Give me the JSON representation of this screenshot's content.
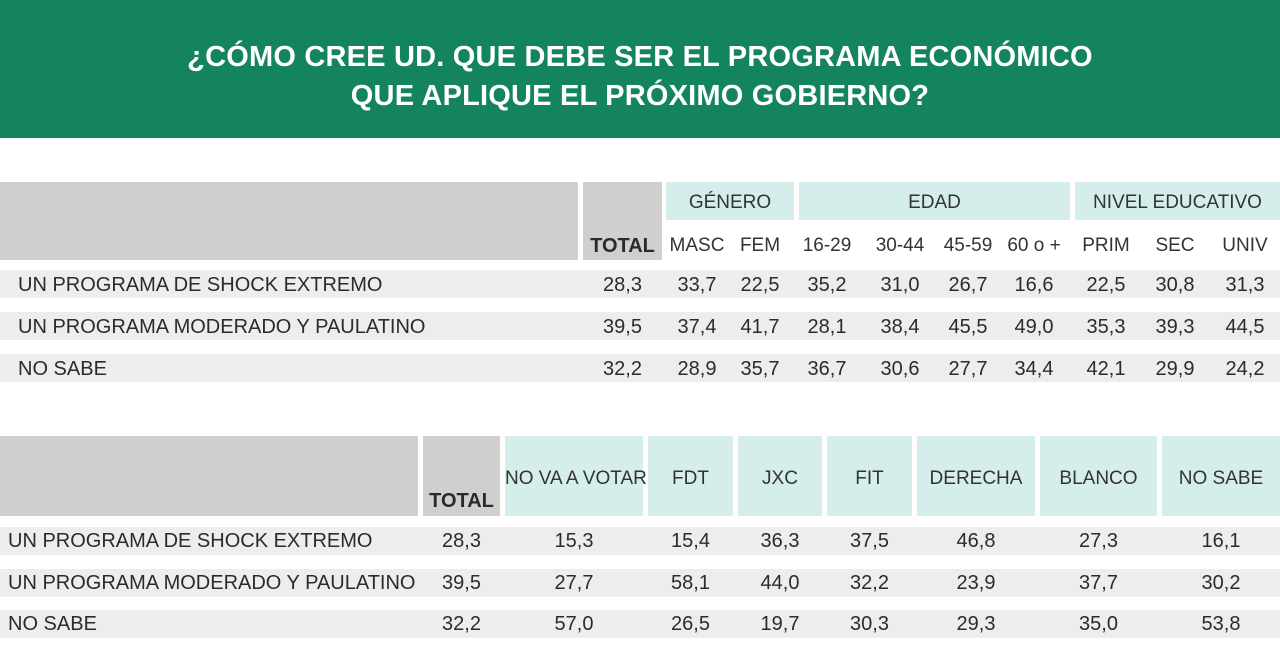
{
  "title": {
    "line1": "¿CÓMO CREE UD. QUE DEBE SER EL PROGRAMA ECONÓMICO",
    "line2": "QUE APLIQUE EL PRÓXIMO GOBIERNO?"
  },
  "colors": {
    "banner": "#13845f",
    "header_gray": "#cfcfcf",
    "header_teal": "#d5eeeb",
    "row_band": "#ededed"
  },
  "chart_data": [
    {
      "type": "table",
      "group_headers": [
        "GÉNERO",
        "EDAD",
        "NIVEL EDUCATIVO"
      ],
      "total_label": "TOTAL",
      "columns": [
        "MASC",
        "FEM",
        "16-29",
        "30-44",
        "45-59",
        "60 o +",
        "PRIM",
        "SEC",
        "UNIV"
      ],
      "rows": [
        {
          "label": "UN PROGRAMA DE SHOCK EXTREMO",
          "total": "28,3",
          "values": [
            "33,7",
            "22,5",
            "35,2",
            "31,0",
            "26,7",
            "16,6",
            "22,5",
            "30,8",
            "31,3"
          ]
        },
        {
          "label": "UN PROGRAMA MODERADO Y PAULATINO",
          "total": "39,5",
          "values": [
            "37,4",
            "41,7",
            "28,1",
            "38,4",
            "45,5",
            "49,0",
            "35,3",
            "39,3",
            "44,5"
          ]
        },
        {
          "label": "NO SABE",
          "total": "32,2",
          "values": [
            "28,9",
            "35,7",
            "36,7",
            "30,6",
            "27,7",
            "34,4",
            "42,1",
            "29,9",
            "24,2"
          ]
        }
      ]
    },
    {
      "type": "table",
      "total_label": "TOTAL",
      "columns": [
        "NO VA A VOTAR",
        "FDT",
        "JXC",
        "FIT",
        "DERECHA",
        "BLANCO",
        "NO SABE"
      ],
      "rows": [
        {
          "label": "UN PROGRAMA DE SHOCK EXTREMO",
          "total": "28,3",
          "values": [
            "15,3",
            "15,4",
            "36,3",
            "37,5",
            "46,8",
            "27,3",
            "16,1"
          ]
        },
        {
          "label": "UN PROGRAMA MODERADO Y PAULATINO",
          "total": "39,5",
          "values": [
            "27,7",
            "58,1",
            "44,0",
            "32,2",
            "23,9",
            "37,7",
            "30,2"
          ]
        },
        {
          "label": "NO SABE",
          "total": "32,2",
          "values": [
            "57,0",
            "26,5",
            "19,7",
            "30,3",
            "29,3",
            "35,0",
            "53,8"
          ]
        }
      ]
    }
  ]
}
